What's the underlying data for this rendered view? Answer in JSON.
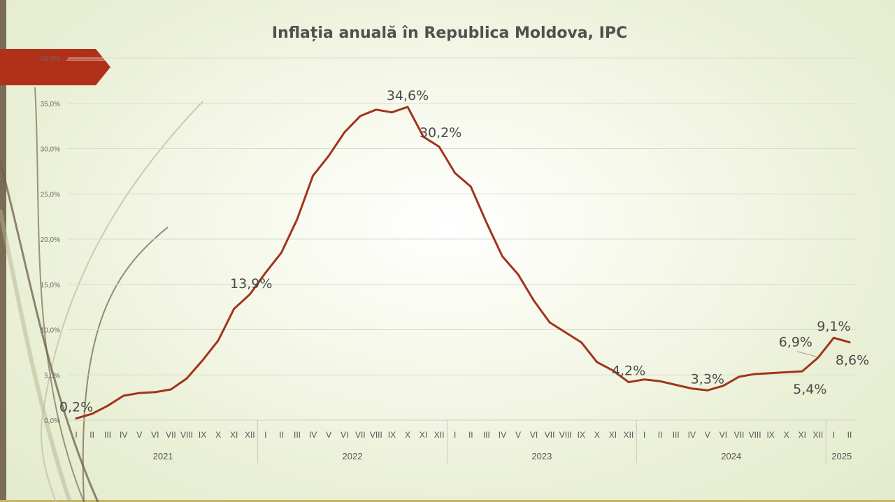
{
  "chart_data": {
    "type": "line",
    "title": "Inflația anuală în Republica Moldova, IPC",
    "xlabel": "",
    "ylabel": "",
    "ylim": [
      0,
      40
    ],
    "yticks": [
      "0,0%",
      "5,0%",
      "10,0%",
      "15,0%",
      "20,0%",
      "25,0%",
      "30,0%",
      "35,0%",
      "40,0%"
    ],
    "grid": true,
    "legend": "none",
    "line_color": "#a0341c",
    "groups": [
      {
        "year": "2021",
        "months": [
          "I",
          "II",
          "III",
          "IV",
          "V",
          "VI",
          "VII",
          "VIII",
          "IX",
          "X",
          "XI",
          "XII"
        ]
      },
      {
        "year": "2022",
        "months": [
          "I",
          "II",
          "III",
          "IV",
          "V",
          "VI",
          "VII",
          "VIII",
          "IX",
          "X",
          "XI",
          "XII"
        ]
      },
      {
        "year": "2023",
        "months": [
          "I",
          "II",
          "III",
          "IV",
          "V",
          "VI",
          "VII",
          "VIII",
          "IX",
          "X",
          "XI",
          "XII"
        ]
      },
      {
        "year": "2024",
        "months": [
          "I",
          "II",
          "III",
          "IV",
          "V",
          "VI",
          "VII",
          "VIII",
          "IX",
          "X",
          "XI",
          "XII"
        ]
      },
      {
        "year": "2025",
        "months": [
          "I",
          "II"
        ]
      }
    ],
    "values": [
      0.2,
      0.7,
      1.6,
      2.7,
      3.0,
      3.1,
      3.4,
      4.6,
      6.6,
      8.8,
      12.3,
      13.9,
      16.3,
      18.5,
      22.2,
      27.0,
      29.2,
      31.8,
      33.6,
      34.3,
      34.0,
      34.6,
      31.3,
      30.2,
      27.3,
      25.8,
      21.8,
      18.1,
      16.1,
      13.2,
      10.8,
      9.7,
      8.6,
      6.4,
      5.5,
      4.2,
      4.5,
      4.3,
      3.9,
      3.5,
      3.3,
      3.8,
      4.8,
      5.1,
      5.2,
      5.3,
      5.4,
      6.9,
      9.1,
      8.6
    ],
    "data_labels": [
      {
        "index": 0,
        "text": "0,2%",
        "pos": "above"
      },
      {
        "index": 11,
        "text": "13,9%",
        "pos": "left"
      },
      {
        "index": 21,
        "text": "34,6%",
        "pos": "above"
      },
      {
        "index": 23,
        "text": "30,2%",
        "pos": "above"
      },
      {
        "index": 35,
        "text": "4,2%",
        "pos": "above"
      },
      {
        "index": 40,
        "text": "3,3%",
        "pos": "above"
      },
      {
        "index": 46,
        "text": "5,4%",
        "pos": "below"
      },
      {
        "index": 47,
        "text": "6,9%",
        "pos": "left"
      },
      {
        "index": 48,
        "text": "9,1%",
        "pos": "above"
      },
      {
        "index": 49,
        "text": "8,6%",
        "pos": "below"
      }
    ]
  }
}
